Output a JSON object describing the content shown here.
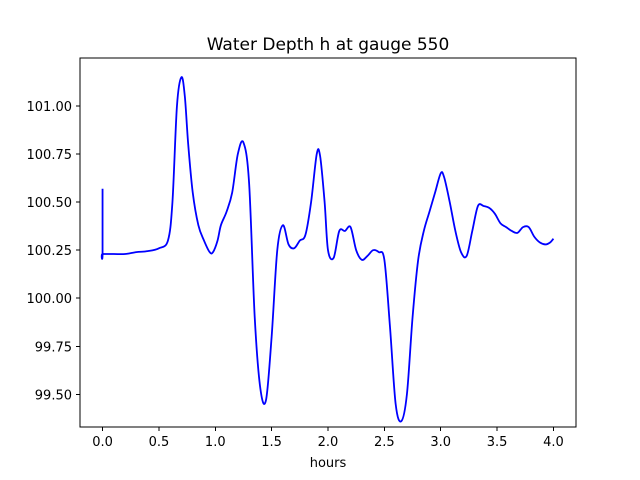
{
  "chart_data": {
    "type": "line",
    "title": "Water Depth h at gauge 550",
    "xlabel": "hours",
    "ylabel": "",
    "xlim": [
      -0.2,
      4.2
    ],
    "ylim": [
      99.33,
      101.25
    ],
    "grid": false,
    "x_ticks": [
      0.0,
      0.5,
      1.0,
      1.5,
      2.0,
      2.5,
      3.0,
      3.5,
      4.0
    ],
    "x_tick_labels": [
      "0.0",
      "0.5",
      "1.0",
      "1.5",
      "2.0",
      "2.5",
      "3.0",
      "3.5",
      "4.0"
    ],
    "y_ticks": [
      99.5,
      99.75,
      100.0,
      100.25,
      100.5,
      100.75,
      101.0
    ],
    "y_tick_labels": [
      "99.50",
      "99.75",
      "100.00",
      "100.25",
      "100.50",
      "100.75",
      "101.00"
    ],
    "series": [
      {
        "color": "#0000ff",
        "x": [
          0.0,
          0.0,
          0.0,
          0.1,
          0.2,
          0.3,
          0.4,
          0.5,
          0.58,
          0.62,
          0.66,
          0.7,
          0.73,
          0.76,
          0.8,
          0.85,
          0.9,
          0.95,
          0.98,
          1.02,
          1.05,
          1.1,
          1.15,
          1.2,
          1.25,
          1.3,
          1.35,
          1.4,
          1.45,
          1.5,
          1.55,
          1.6,
          1.65,
          1.7,
          1.75,
          1.8,
          1.85,
          1.9,
          1.93,
          1.97,
          2.0,
          2.05,
          2.1,
          2.15,
          2.2,
          2.25,
          2.3,
          2.35,
          2.4,
          2.45,
          2.5,
          2.55,
          2.6,
          2.65,
          2.7,
          2.75,
          2.8,
          2.85,
          2.9,
          2.95,
          3.0,
          3.03,
          3.08,
          3.13,
          3.18,
          3.23,
          3.28,
          3.33,
          3.38,
          3.43,
          3.48,
          3.53,
          3.58,
          3.63,
          3.68,
          3.73,
          3.78,
          3.83,
          3.88,
          3.93,
          3.97,
          4.0
        ],
        "y": [
          100.57,
          100.23,
          100.23,
          100.23,
          100.23,
          100.24,
          100.245,
          100.26,
          100.3,
          100.5,
          101.0,
          101.15,
          101.05,
          100.8,
          100.55,
          100.38,
          100.3,
          100.24,
          100.24,
          100.3,
          100.38,
          100.45,
          100.55,
          100.75,
          100.81,
          100.6,
          99.9,
          99.53,
          99.47,
          99.8,
          100.25,
          100.38,
          100.28,
          100.26,
          100.3,
          100.33,
          100.5,
          100.75,
          100.74,
          100.5,
          100.25,
          100.21,
          100.35,
          100.35,
          100.37,
          100.25,
          100.2,
          100.22,
          100.25,
          100.24,
          100.2,
          99.85,
          99.45,
          99.36,
          99.5,
          99.9,
          100.2,
          100.35,
          100.45,
          100.55,
          100.65,
          100.63,
          100.5,
          100.35,
          100.24,
          100.22,
          100.35,
          100.48,
          100.48,
          100.47,
          100.44,
          100.39,
          100.37,
          100.35,
          100.34,
          100.37,
          100.37,
          100.32,
          100.29,
          100.28,
          100.29,
          100.31
        ]
      }
    ]
  }
}
